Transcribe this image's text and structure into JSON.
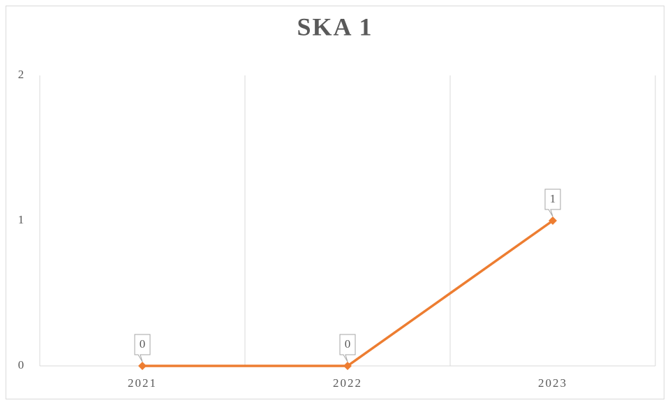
{
  "chart_data": {
    "type": "line",
    "title": "SKA 1",
    "categories": [
      "2021",
      "2022",
      "2023"
    ],
    "series": [
      {
        "name": "SKA 1",
        "color": "#ed7d31",
        "values": [
          0,
          0,
          1
        ]
      }
    ],
    "ylim": [
      0,
      2
    ],
    "yticks": [
      0,
      1,
      2
    ],
    "grid": true
  }
}
